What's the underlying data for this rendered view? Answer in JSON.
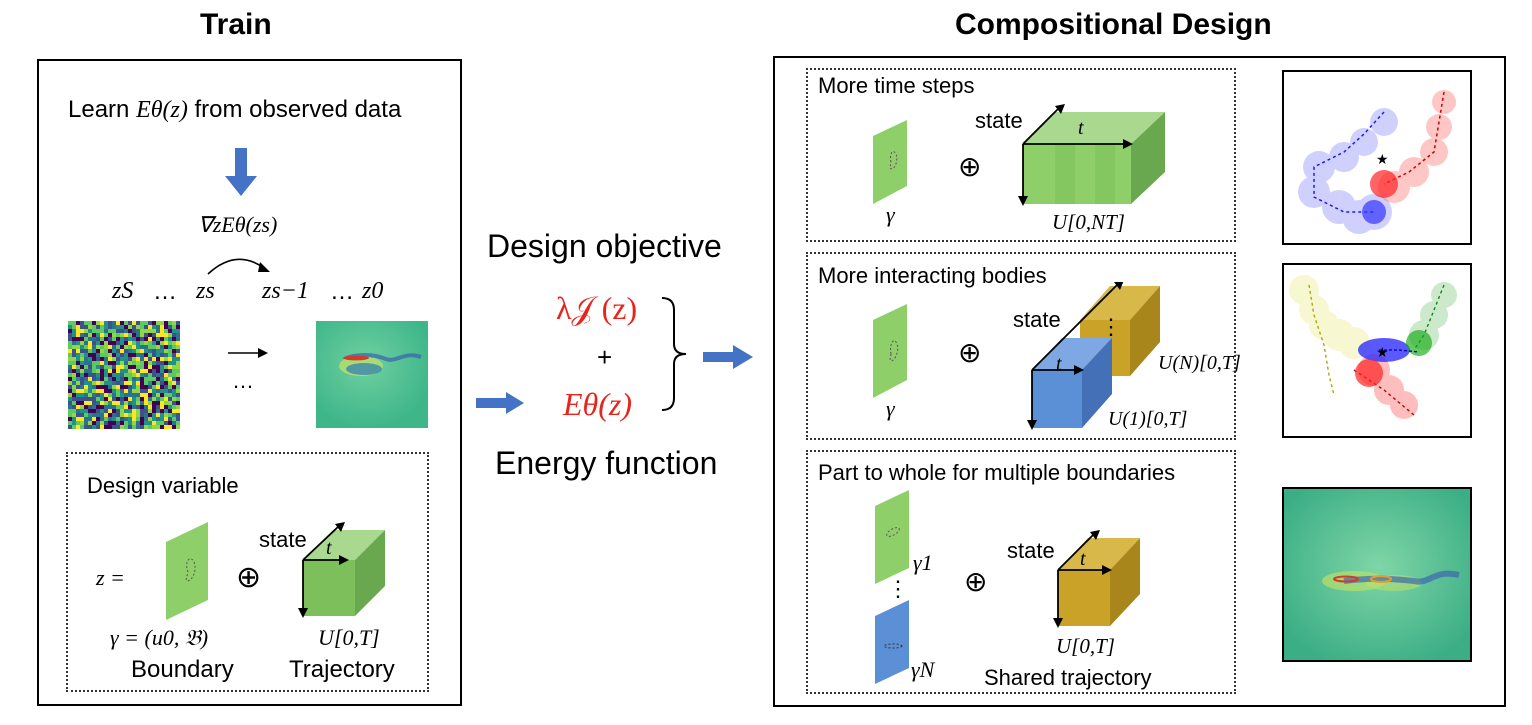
{
  "train": {
    "title": "Train",
    "learn_text": "Learn",
    "learn_math": "Eθ(z)",
    "learn_suffix": "from observed data",
    "gradient": "∇zEθ(zs)",
    "chain": [
      "zS",
      "…",
      "zs",
      "zs−1",
      "…",
      "z0"
    ],
    "ellipsis": "…",
    "design_variable": {
      "title": "Design variable",
      "z_eq": "z =",
      "gamma_def": "γ = (u0, 𝔅)",
      "boundary_label": "Boundary",
      "traj_math": "U[0,T]",
      "trajectory_label": "Trajectory",
      "state_label": "state",
      "t_label": "t"
    }
  },
  "middle": {
    "design_objective": "Design objective",
    "lambda_term": "λ𝒥 (z)",
    "plus": "+",
    "energy_term": "Eθ(z)",
    "energy_function": "Energy function"
  },
  "compositional": {
    "title": "Compositional Design",
    "box1": {
      "title": "More time steps",
      "state": "state",
      "t": "t",
      "gamma": "γ",
      "traj": "U[0,NT]"
    },
    "box2": {
      "title": "More interacting bodies",
      "state": "state",
      "t": "t",
      "gamma": "γ",
      "traj_n": "U(N)[0,T]",
      "traj_1": "U(1)[0,T]",
      "dots": "⋮"
    },
    "box3": {
      "title": "Part to whole for multiple boundaries",
      "state": "state",
      "t": "t",
      "gamma1": "γ1",
      "gammaN": "γN",
      "dots": "⋮",
      "traj": "U[0,T]",
      "shared": "Shared trajectory"
    }
  },
  "colors": {
    "green_face": "#8fcf6a",
    "green_top": "#a9d98f",
    "green_side": "#6aa84f",
    "blue_face": "#5b8fd6",
    "gold_face": "#c9a227",
    "arrow_blue": "#4472c4",
    "red": "#e8251c"
  }
}
